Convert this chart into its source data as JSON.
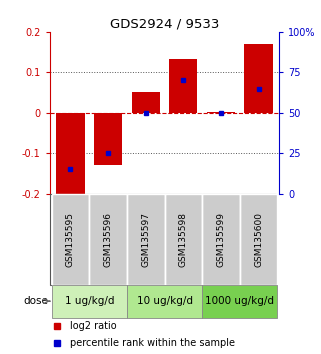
{
  "title": "GDS2924 / 9533",
  "samples": [
    "GSM135595",
    "GSM135596",
    "GSM135597",
    "GSM135598",
    "GSM135599",
    "GSM135600"
  ],
  "log2_ratios": [
    -0.205,
    -0.13,
    0.052,
    0.132,
    0.003,
    0.17
  ],
  "percentile_ranks": [
    15,
    25,
    50,
    70,
    50,
    65
  ],
  "ylim_left": [
    -0.2,
    0.2
  ],
  "ylim_right": [
    0,
    100
  ],
  "yticks_left": [
    -0.2,
    -0.1,
    0.0,
    0.1,
    0.2
  ],
  "yticks_right": [
    0,
    25,
    50,
    75,
    100
  ],
  "ytick_labels_right": [
    "0",
    "25",
    "50",
    "75",
    "100%"
  ],
  "dose_groups": [
    {
      "label": "1 ug/kg/d",
      "samples": [
        0,
        1
      ],
      "color": "#cef0b8"
    },
    {
      "label": "10 ug/kg/d",
      "samples": [
        2,
        3
      ],
      "color": "#b0e890"
    },
    {
      "label": "1000 ug/kg/d",
      "samples": [
        4,
        5
      ],
      "color": "#78d050"
    }
  ],
  "bar_color": "#cc0000",
  "percentile_color": "#0000cc",
  "zero_line_color": "#cc0000",
  "dotted_line_color": "#555555",
  "sample_box_color": "#cccccc",
  "bar_width": 0.75,
  "left_axis_color": "#cc0000",
  "right_axis_color": "#0000cc",
  "legend_red_label": "log2 ratio",
  "legend_blue_label": "percentile rank within the sample",
  "dose_label": "dose"
}
